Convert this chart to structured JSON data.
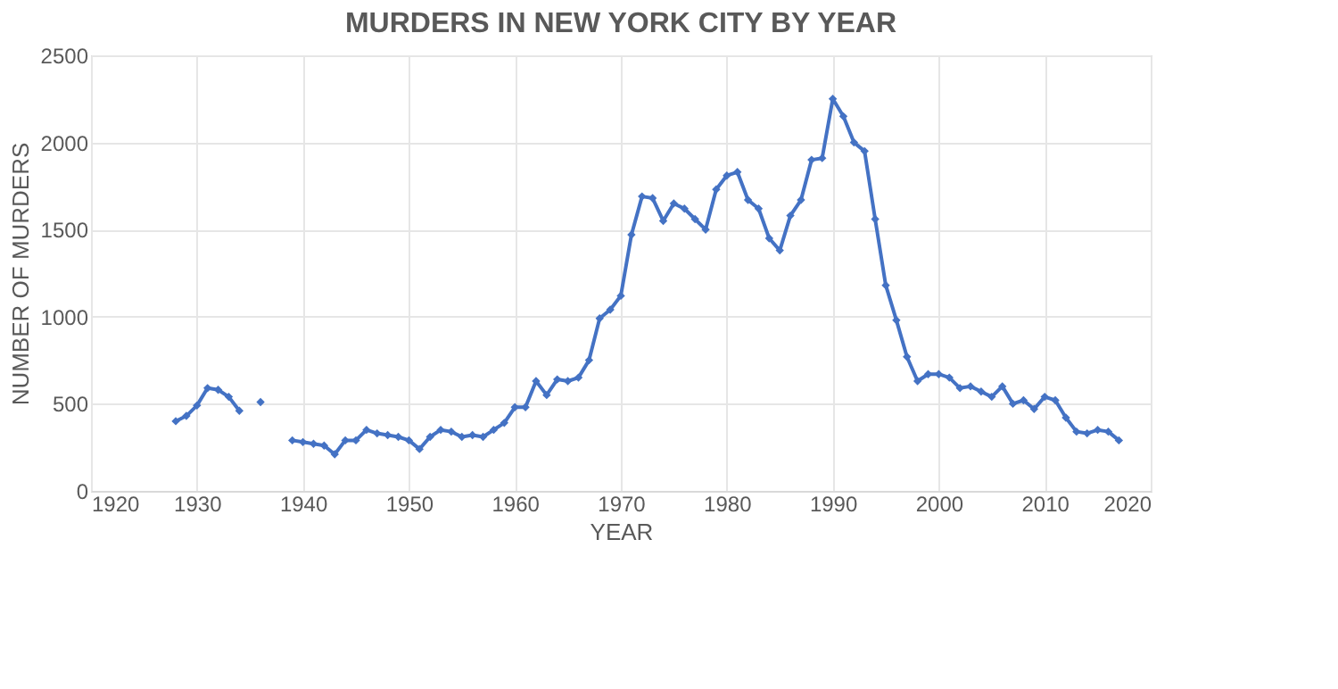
{
  "chart_data": {
    "type": "line",
    "title": "MURDERS IN NEW YORK CITY BY YEAR",
    "xlabel": "YEAR",
    "ylabel": "NUMBER OF MURDERS",
    "x": [
      1928,
      1929,
      1930,
      1931,
      1932,
      1933,
      1934,
      1935,
      1936,
      1937,
      1938,
      1939,
      1940,
      1941,
      1942,
      1943,
      1944,
      1945,
      1946,
      1947,
      1948,
      1949,
      1950,
      1951,
      1952,
      1953,
      1954,
      1955,
      1956,
      1957,
      1958,
      1959,
      1960,
      1961,
      1962,
      1963,
      1964,
      1965,
      1966,
      1967,
      1968,
      1969,
      1970,
      1971,
      1972,
      1973,
      1974,
      1975,
      1976,
      1977,
      1978,
      1979,
      1980,
      1981,
      1982,
      1983,
      1984,
      1985,
      1986,
      1987,
      1988,
      1989,
      1990,
      1991,
      1992,
      1993,
      1994,
      1995,
      1996,
      1997,
      1998,
      1999,
      2000,
      2001,
      2002,
      2003,
      2004,
      2005,
      2006,
      2007,
      2008,
      2009,
      2010,
      2011,
      2012,
      2013,
      2014,
      2015,
      2016,
      2017
    ],
    "series": [
      {
        "color": "#4472c4",
        "values": [
          400,
          430,
          490,
          590,
          580,
          540,
          460,
          null,
          510,
          null,
          null,
          290,
          280,
          270,
          260,
          210,
          290,
          290,
          350,
          330,
          320,
          310,
          290,
          240,
          310,
          350,
          340,
          310,
          320,
          310,
          350,
          390,
          480,
          480,
          630,
          550,
          640,
          630,
          650,
          750,
          990,
          1040,
          1120,
          1470,
          1690,
          1680,
          1550,
          1650,
          1620,
          1560,
          1500,
          1730,
          1810,
          1830,
          1670,
          1620,
          1450,
          1380,
          1580,
          1670,
          1900,
          1910,
          2250,
          2150,
          2000,
          1950,
          1560,
          1180,
          980,
          770,
          630,
          670,
          670,
          650,
          590,
          600,
          570,
          540,
          600,
          500,
          520,
          470,
          540,
          520,
          420,
          340,
          330,
          350,
          340,
          290
        ]
      }
    ],
    "xlim": [
      1920,
      2020
    ],
    "xticks": [
      1920,
      1930,
      1940,
      1950,
      1960,
      1970,
      1980,
      1990,
      2000,
      2010,
      2020
    ],
    "ylim": [
      0,
      2500
    ],
    "yticks": [
      0,
      500,
      1000,
      1500,
      2000,
      2500
    ],
    "grid": true,
    "marker": "diamond",
    "line_style": "solid"
  }
}
